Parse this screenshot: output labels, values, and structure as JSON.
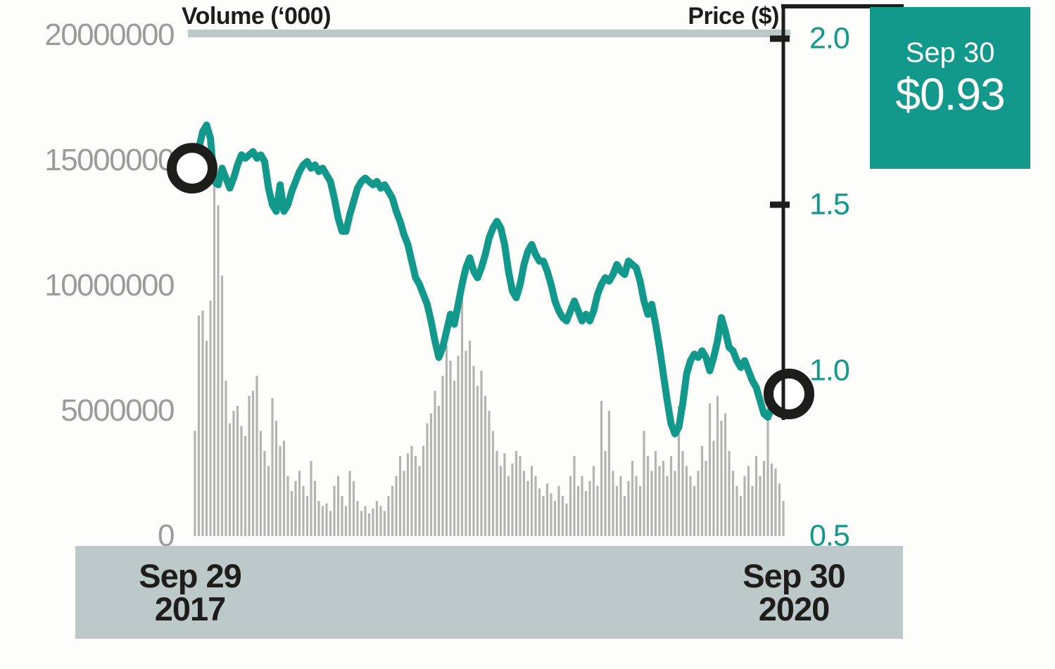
{
  "labels": {
    "volume_axis_title": "Volume (‘000)",
    "price_axis_title": "Price ($)"
  },
  "axes": {
    "volume": {
      "tick_labels": [
        "20000000",
        "15000000",
        "10000000",
        "5000000",
        "0"
      ]
    },
    "price": {
      "tick_labels": [
        "2.0",
        "1.5",
        "1.0",
        "0.5"
      ]
    }
  },
  "x_axis": {
    "start": {
      "line1": "Sep 29",
      "line2": "2017"
    },
    "end": {
      "line1": "Sep 30",
      "line2": "2020"
    }
  },
  "callout": {
    "date": "Sep 30",
    "price": "$0.93"
  },
  "colors": {
    "teal": "#12998b",
    "bar_gray": "#b4b4b4",
    "band_gray": "#bdc9c9",
    "axis_text_gray": "#9b9b9b",
    "black": "#1d1d1b",
    "white": "#ffffff"
  },
  "chart_data": {
    "type": "combo",
    "x": {
      "start": "Sep 29 2017",
      "end": "Sep 30 2020",
      "points": 153,
      "frequency": "weekly"
    },
    "left_axis": {
      "title": "Volume (‘000)",
      "range": [
        0,
        20000000
      ],
      "ticks": [
        20000000,
        15000000,
        10000000,
        5000000,
        0
      ]
    },
    "right_axis": {
      "title": "Price ($)",
      "range": [
        0.5,
        2.0
      ],
      "ticks": [
        2.0,
        1.5,
        1.0,
        0.5
      ]
    },
    "annotations": {
      "end_label": {
        "date": "Sep 30",
        "value": "$0.93"
      },
      "markers": [
        "start-circle",
        "end-circle"
      ]
    },
    "grid": "top-line-only",
    "legend_position": "none",
    "series": [
      {
        "name": "Volume",
        "type": "bar",
        "axis": "left",
        "unit": "shares",
        "values": [
          4200000,
          8800000,
          9000000,
          7800000,
          9400000,
          14300000,
          13200000,
          10400000,
          6200000,
          4500000,
          5000000,
          5200000,
          4400000,
          4000000,
          5600000,
          5800000,
          6400000,
          4200000,
          3400000,
          2800000,
          5500000,
          4600000,
          3600000,
          3800000,
          2400000,
          1800000,
          2200000,
          2600000,
          2000000,
          1600000,
          3000000,
          2200000,
          1400000,
          1200000,
          1300000,
          1000000,
          2000000,
          2400000,
          1600000,
          1200000,
          2600000,
          2200000,
          1400000,
          1000000,
          1200000,
          900000,
          1100000,
          1400000,
          1200000,
          1000000,
          1600000,
          2000000,
          2400000,
          3200000,
          2600000,
          3300000,
          3600000,
          3200000,
          2800000,
          3600000,
          4500000,
          4900000,
          5800000,
          5200000,
          6400000,
          7600000,
          7000000,
          6200000,
          7200000,
          9600000,
          7400000,
          7800000,
          6800000,
          6000000,
          6600000,
          5600000,
          5000000,
          4200000,
          3400000,
          2800000,
          3300000,
          2400000,
          2900000,
          3400000,
          3200000,
          2600000,
          2200000,
          2800000,
          2400000,
          1900000,
          1600000,
          2100000,
          1700000,
          1400000,
          2000000,
          1600000,
          1300000,
          2400000,
          3200000,
          2000000,
          2400000,
          1800000,
          2200000,
          2800000,
          2000000,
          5400000,
          3400000,
          5000000,
          2600000,
          2000000,
          2400000,
          1600000,
          2200000,
          3000000,
          2400000,
          2000000,
          4200000,
          3200000,
          2600000,
          3400000,
          2800000,
          3000000,
          2400000,
          3200000,
          2600000,
          5200000,
          3400000,
          2800000,
          2400000,
          2000000,
          2600000,
          3600000,
          3000000,
          5300000,
          3800000,
          5600000,
          4600000,
          4900000,
          3400000,
          2600000,
          2000000,
          1600000,
          2400000,
          2800000,
          2000000,
          3200000,
          2400000,
          3000000,
          4700000,
          2900000,
          2700000,
          2100000,
          1400000
        ]
      },
      {
        "name": "Price",
        "type": "line",
        "axis": "right",
        "unit": "$",
        "values": [
          1.61,
          1.67,
          1.72,
          1.74,
          1.7,
          1.57,
          1.56,
          1.61,
          1.58,
          1.55,
          1.58,
          1.62,
          1.65,
          1.64,
          1.65,
          1.66,
          1.64,
          1.65,
          1.63,
          1.55,
          1.5,
          1.48,
          1.56,
          1.48,
          1.5,
          1.54,
          1.57,
          1.6,
          1.62,
          1.63,
          1.61,
          1.62,
          1.6,
          1.61,
          1.59,
          1.57,
          1.52,
          1.46,
          1.42,
          1.42,
          1.47,
          1.51,
          1.55,
          1.57,
          1.58,
          1.57,
          1.56,
          1.57,
          1.55,
          1.56,
          1.54,
          1.52,
          1.48,
          1.45,
          1.41,
          1.38,
          1.33,
          1.28,
          1.26,
          1.23,
          1.2,
          1.15,
          1.09,
          1.04,
          1.07,
          1.12,
          1.17,
          1.14,
          1.2,
          1.26,
          1.31,
          1.34,
          1.3,
          1.28,
          1.31,
          1.35,
          1.4,
          1.43,
          1.45,
          1.43,
          1.38,
          1.3,
          1.24,
          1.22,
          1.26,
          1.32,
          1.36,
          1.38,
          1.35,
          1.33,
          1.33,
          1.3,
          1.26,
          1.21,
          1.18,
          1.16,
          1.15,
          1.18,
          1.21,
          1.18,
          1.15,
          1.17,
          1.15,
          1.18,
          1.23,
          1.26,
          1.28,
          1.27,
          1.29,
          1.32,
          1.3,
          1.29,
          1.33,
          1.32,
          1.31,
          1.27,
          1.21,
          1.17,
          1.2,
          1.14,
          1.07,
          0.99,
          0.91,
          0.84,
          0.81,
          0.83,
          0.9,
          0.99,
          1.03,
          1.05,
          1.04,
          1.06,
          1.04,
          1.0,
          1.04,
          1.09,
          1.16,
          1.12,
          1.07,
          1.06,
          1.03,
          1.01,
          1.03,
          1.0,
          0.97,
          0.95,
          0.91,
          0.87,
          0.86,
          0.89,
          0.91,
          0.92,
          0.93
        ]
      }
    ]
  }
}
